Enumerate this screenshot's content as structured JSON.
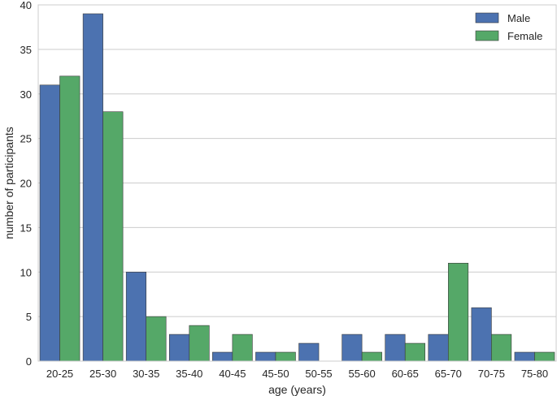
{
  "chart_data": {
    "type": "bar",
    "title": "",
    "xlabel": "age (years)",
    "ylabel": "number of participants",
    "categories": [
      "20-25",
      "25-30",
      "30-35",
      "35-40",
      "40-45",
      "45-50",
      "50-55",
      "55-60",
      "60-65",
      "65-70",
      "70-75",
      "75-80"
    ],
    "series": [
      {
        "name": "Male",
        "color": "#4c72b0",
        "values": [
          31,
          39,
          10,
          3,
          1,
          1,
          2,
          3,
          3,
          3,
          6,
          1
        ]
      },
      {
        "name": "Female",
        "color": "#55a868",
        "values": [
          32,
          28,
          5,
          4,
          3,
          1,
          0,
          1,
          2,
          11,
          3,
          1
        ]
      }
    ],
    "ylim": [
      0,
      40
    ],
    "yticks": [
      0,
      5,
      10,
      15,
      20,
      25,
      30,
      35,
      40
    ],
    "grid": "y",
    "legend": "top-right"
  }
}
